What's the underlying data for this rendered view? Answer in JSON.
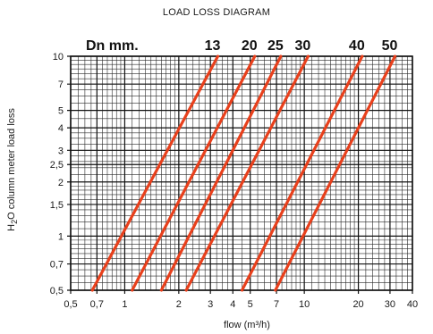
{
  "chart_data": {
    "type": "line",
    "title": "LOAD LOSS DIAGRAM",
    "header_label": "Dn mm.",
    "xlabel": "flow (m³/h)",
    "ylabel_pre": "H",
    "ylabel_sub": "2",
    "ylabel_post": "O column meter load loss",
    "xscale": "log",
    "yscale": "log",
    "xlim": [
      0.5,
      40
    ],
    "ylim": [
      0.5,
      10
    ],
    "grid": true,
    "x_ticks": [
      {
        "v": 0.5,
        "label": "0,5"
      },
      {
        "v": 0.7,
        "label": "0,7"
      },
      {
        "v": 1,
        "label": "1"
      },
      {
        "v": 2,
        "label": "2"
      },
      {
        "v": 3,
        "label": "3"
      },
      {
        "v": 4,
        "label": "4"
      },
      {
        "v": 5,
        "label": "5"
      },
      {
        "v": 7,
        "label": "7"
      },
      {
        "v": 10,
        "label": "10"
      },
      {
        "v": 20,
        "label": "20"
      },
      {
        "v": 30,
        "label": "30"
      },
      {
        "v": 40,
        "label": "40"
      }
    ],
    "y_ticks": [
      {
        "v": 0.5,
        "label": "0,5"
      },
      {
        "v": 0.7,
        "label": "0,7"
      },
      {
        "v": 1,
        "label": "1"
      },
      {
        "v": 1.5,
        "label": "1,5"
      },
      {
        "v": 2,
        "label": "2"
      },
      {
        "v": 2.5,
        "label": "2,5"
      },
      {
        "v": 3,
        "label": "3"
      },
      {
        "v": 4,
        "label": "4"
      },
      {
        "v": 5,
        "label": "5"
      },
      {
        "v": 7,
        "label": "7"
      },
      {
        "v": 10,
        "label": "10"
      }
    ],
    "series": [
      {
        "name": "13",
        "points": [
          [
            0.66,
            0.5
          ],
          [
            3.3,
            10
          ]
        ]
      },
      {
        "name": "20",
        "points": [
          [
            1.1,
            0.5
          ],
          [
            5.3,
            10
          ]
        ]
      },
      {
        "name": "25",
        "points": [
          [
            1.6,
            0.5
          ],
          [
            7.4,
            10
          ]
        ]
      },
      {
        "name": "30",
        "points": [
          [
            2.2,
            0.5
          ],
          [
            10.5,
            10
          ]
        ]
      },
      {
        "name": "40",
        "points": [
          [
            4.5,
            0.5
          ],
          [
            21,
            10
          ]
        ]
      },
      {
        "name": "50",
        "points": [
          [
            6.9,
            0.5
          ],
          [
            32,
            10
          ]
        ]
      }
    ],
    "line_color": "#e8401c"
  }
}
